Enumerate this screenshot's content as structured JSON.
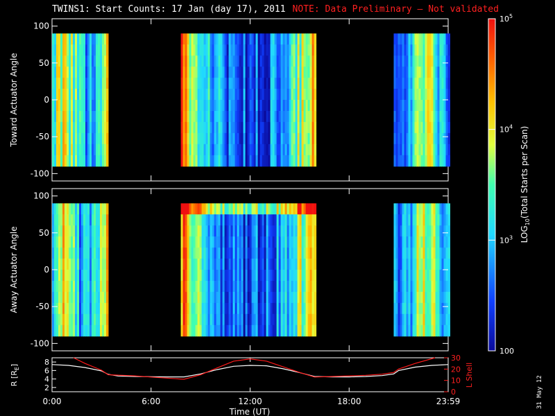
{
  "header": {
    "title": "TWINS1: Start Counts: 17 Jan (day  17), 2011",
    "note": "NOTE: Data Preliminary – Not validated"
  },
  "footer": {
    "date_stamp": "31 May 12"
  },
  "chart_data": [
    {
      "type": "heatmap",
      "ylabel": "Toward Actuator Angle",
      "ylim": [
        -110,
        110
      ],
      "yticks": [
        100,
        50,
        0,
        -50,
        -100
      ],
      "y_data_range": [
        -90,
        90
      ],
      "x_unit": "hours UT",
      "data_intervals_hours": [
        [
          0,
          3.3
        ],
        [
          7.8,
          15.9
        ],
        [
          20.7,
          24
        ]
      ],
      "colormap": "rainbow"
    },
    {
      "type": "heatmap",
      "ylabel": "Away Actuator Angle",
      "ylim": [
        -110,
        110
      ],
      "yticks": [
        100,
        50,
        0,
        -50,
        -100
      ],
      "y_data_range": [
        -90,
        90
      ],
      "x_unit": "hours UT",
      "data_intervals_hours": [
        [
          0,
          3.3
        ],
        [
          7.8,
          15.9
        ],
        [
          20.7,
          24
        ]
      ],
      "colormap": "rainbow"
    },
    {
      "type": "line",
      "xlabel": "Time (UT)",
      "xlim": [
        0,
        24
      ],
      "xticks": [
        "0:00",
        "6:00",
        "12:00",
        "18:00",
        "23:59"
      ],
      "ylabel": "R [R",
      "ylabel_sub": "E",
      "ylabel_close": "]",
      "ylim": [
        1,
        9
      ],
      "yticks": [
        8,
        6,
        4,
        2
      ],
      "y2label": "L Shell",
      "y2lim": [
        0,
        30
      ],
      "y2ticks": [
        30,
        20,
        10,
        0
      ],
      "series": [
        {
          "axis": "left",
          "color": "#ffffff",
          "x": [
            0,
            1,
            2,
            3,
            3.4,
            4,
            5,
            6,
            7,
            8,
            9,
            10,
            11,
            12,
            13,
            14,
            15,
            15.9,
            17,
            18,
            19,
            20,
            20.7,
            21,
            22,
            23,
            24
          ],
          "y": [
            7.4,
            7.2,
            6.7,
            5.9,
            5.1,
            4.7,
            4.6,
            4.55,
            4.5,
            4.5,
            5.2,
            6.2,
            7.0,
            7.2,
            7.1,
            6.4,
            5.5,
            4.6,
            4.5,
            4.5,
            4.6,
            4.8,
            5.2,
            6.0,
            6.8,
            7.2,
            7.4
          ]
        },
        {
          "axis": "right",
          "color": "#ff1a1a",
          "x": [
            1.3,
            2,
            3,
            3.4,
            5,
            6,
            7,
            8,
            9,
            10,
            11,
            12,
            13,
            14,
            15,
            15.9,
            17,
            18,
            19,
            20,
            20.7,
            21,
            22,
            23.2
          ],
          "y": [
            30,
            25,
            19,
            15,
            14,
            13,
            12,
            11,
            15,
            21,
            27,
            29,
            27,
            22,
            17,
            13,
            13.5,
            14,
            14.5,
            15.5,
            17,
            20,
            25,
            30
          ]
        }
      ]
    }
  ],
  "colorbar": {
    "label_pre": "LOG",
    "label_sub": "10",
    "label_post": "(Total Starts per Scan)",
    "ticks": [
      {
        "value": 100,
        "label": "100"
      },
      {
        "value": 1000,
        "base": "10",
        "exp": "3"
      },
      {
        "value": 10000,
        "base": "10",
        "exp": "4"
      },
      {
        "value": 100000,
        "base": "10",
        "exp": "5"
      }
    ],
    "range": [
      100,
      100000
    ]
  }
}
